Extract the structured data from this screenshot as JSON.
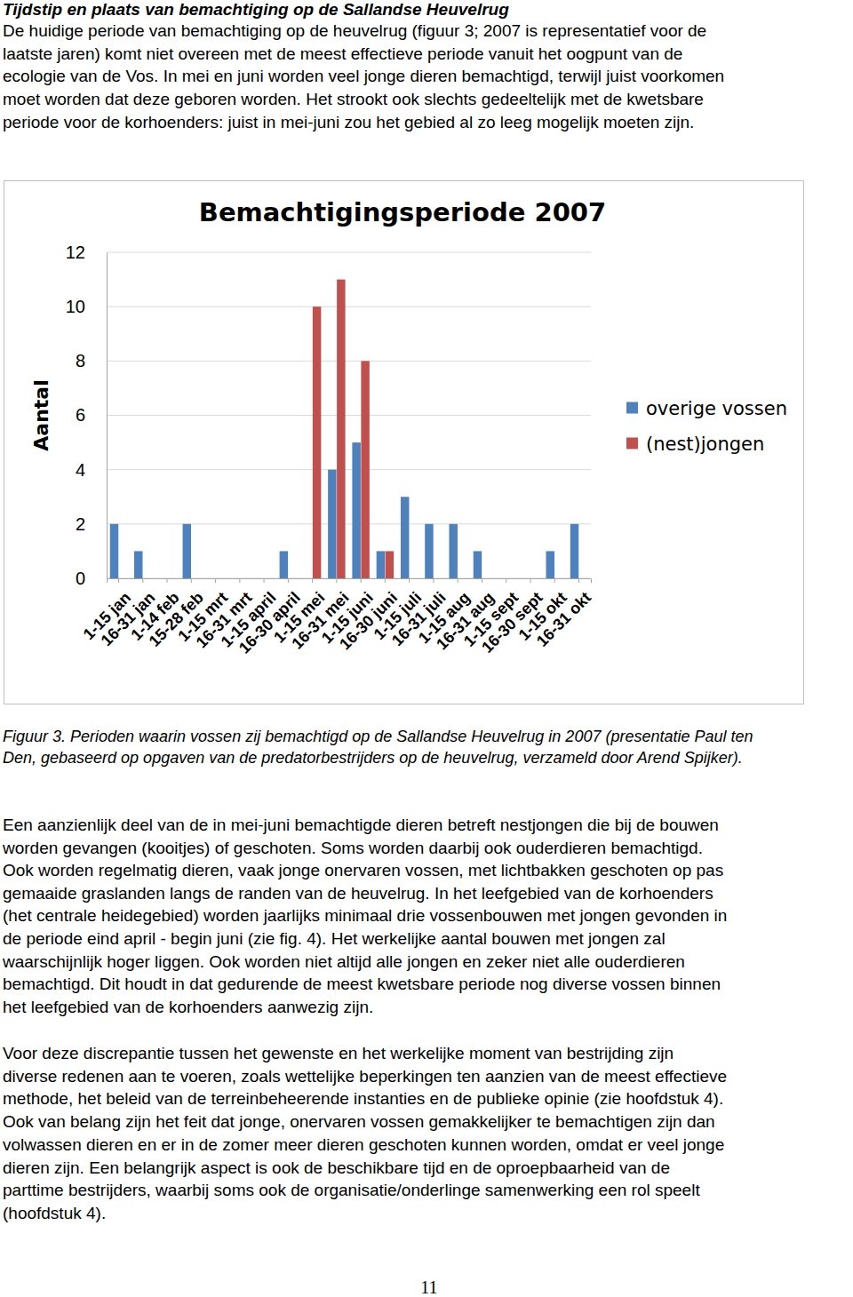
{
  "heading": "Tijdstip en plaats van bemachtiging op de Sallandse Heuvelrug",
  "intro": [
    "De huidige periode van bemachtiging op de heuvelrug (figuur 3; 2007 is representatief voor de",
    "laatste jaren) komt niet overeen met de meest effectieve periode vanuit het oogpunt van de",
    "ecologie van de Vos. In mei en juni worden veel jonge dieren bemachtigd, terwijl juist voorkomen",
    "moet worden dat deze geboren worden. Het strookt ook slechts gedeeltelijk met de kwetsbare",
    "periode voor de korhoenders: juist in mei-juni zou het gebied al zo leeg mogelijk moeten zijn."
  ],
  "chart_data": {
    "type": "bar",
    "title": "Bemachtigingsperiode 2007",
    "y_label": "Aantal",
    "categories": [
      "1-15 jan",
      "16-31 jan",
      "1-14 feb",
      "15-28 feb",
      "1-15 mrt",
      "16-31 mrt",
      "1-15 april",
      "16-30 april",
      "1-15 mei",
      "16-31 mei",
      "1-15 juni",
      "16-30 juni",
      "1-15 juli",
      "16-31 juli",
      "1-15 aug",
      "16-31 aug",
      "1-15 sept",
      "16-30 sept",
      "1-15 okt",
      "16-31 okt"
    ],
    "series": [
      {
        "name": "overige vossen",
        "color": "#4f81bd",
        "values": [
          2,
          1,
          0,
          2,
          0,
          0,
          0,
          1,
          0,
          4,
          5,
          1,
          3,
          2,
          2,
          1,
          0,
          0,
          1,
          2
        ]
      },
      {
        "name": "(nest)jongen",
        "color": "#c0504d",
        "values": [
          0,
          0,
          0,
          0,
          0,
          0,
          0,
          0,
          10,
          11,
          8,
          1,
          0,
          0,
          0,
          0,
          0,
          0,
          0,
          0
        ]
      }
    ],
    "ylim": [
      0,
      12
    ],
    "yticks": [
      0,
      2,
      4,
      6,
      8,
      10,
      12
    ],
    "grid": true,
    "legend": "right"
  },
  "caption": [
    "Figuur 3. Perioden waarin vossen zij bemachtigd op de Sallandse Heuvelrug in 2007 (presentatie Paul ten",
    "Den, gebaseerd op opgaven van de predatorbestrijders op de heuvelrug, verzameld door Arend Spijker)."
  ],
  "body": [
    [
      "Een aanzienlijk deel van de in mei-juni bemachtigde dieren betreft nestjongen die bij de bouwen",
      "worden gevangen (kooitjes) of geschoten. Soms worden daarbij ook ouderdieren bemachtigd.",
      "Ook worden regelmatig dieren, vaak jonge onervaren vossen, met lichtbakken geschoten op pas",
      "gemaaide graslanden langs de randen van de heuvelrug. In het leefgebied van de korhoenders",
      "(het centrale heidegebied) worden jaarlijks minimaal drie vossenbouwen met jongen gevonden in",
      "de periode eind april - begin juni (zie fig. 4). Het werkelijke aantal bouwen met jongen zal",
      "waarschijnlijk hoger liggen. Ook worden niet altijd alle jongen en zeker niet alle ouderdieren",
      "bemachtigd. Dit houdt in dat gedurende de meest kwetsbare periode nog diverse vossen binnen",
      "het leefgebied van de korhoenders aanwezig zijn."
    ],
    [
      "Voor deze discrepantie tussen het gewenste en het werkelijke moment van bestrijding zijn",
      "diverse redenen aan te voeren, zoals wettelijke beperkingen ten aanzien van de meest effectieve",
      "methode, het beleid van de terreinbeheerende instanties en de publieke opinie (zie hoofdstuk 4).",
      "Ook van belang zijn het feit dat jonge, onervaren vossen gemakkelijker te bemachtigen zijn dan",
      "volwassen dieren en er in de zomer meer dieren geschoten kunnen worden, omdat er veel jonge",
      "dieren zijn. Een belangrijk aspect is ook de beschikbare tijd en de oproepbaarheid van de",
      "parttime bestrijders, waarbij soms ook de organisatie/onderlinge samenwerking een rol speelt",
      "(hoofdstuk 4)."
    ]
  ],
  "page_number": "11"
}
